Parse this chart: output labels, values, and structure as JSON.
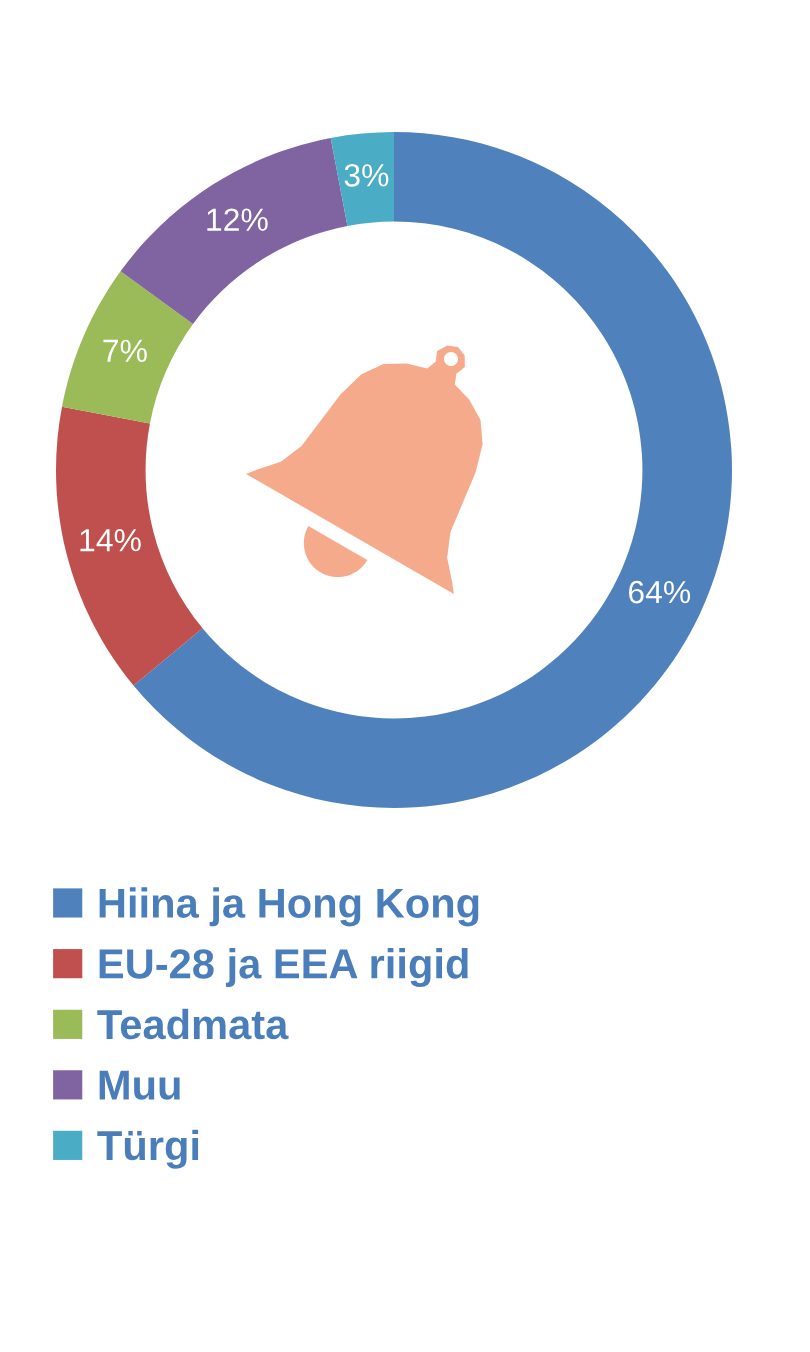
{
  "chart_data": {
    "type": "donut",
    "categories": [
      "Hiina ja Hong Kong",
      "EU-28 ja EEA riigid",
      "Teadmata",
      "Muu",
      "Türgi"
    ],
    "values": [
      64,
      14,
      7,
      12,
      3
    ],
    "colors": [
      "#4f81bd",
      "#c0504d",
      "#9bbb59",
      "#8064a2",
      "#4bacc6"
    ],
    "value_labels": [
      "64%",
      "14%",
      "7%",
      "12%",
      "3%"
    ],
    "legend": "bottom"
  }
}
